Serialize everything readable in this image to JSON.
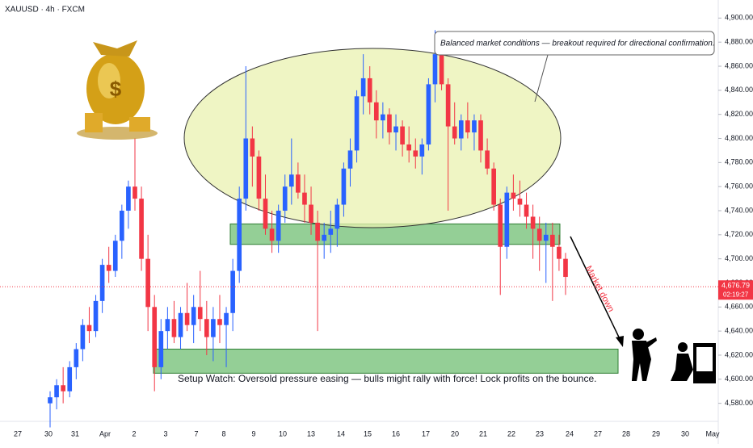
{
  "chart_data": {
    "type": "candlestick",
    "title": "XAUUSD · 4h · FXCM",
    "up_color": "#2962ff",
    "down_color": "#f23645",
    "open": [
      4580,
      4585,
      4595,
      4590,
      4610,
      4625,
      4645,
      4640,
      4665,
      4695,
      4690,
      4715,
      4740,
      4760,
      4750,
      4700,
      4660,
      4610,
      4640,
      4650,
      4635,
      4655,
      4645,
      4660,
      4650,
      4635,
      4650,
      4645,
      4655,
      4690,
      4750,
      4800,
      4785,
      4750,
      4725,
      4715,
      4740,
      4760,
      4770,
      4755,
      4745,
      4730,
      4715,
      4720,
      4725,
      4745,
      4775,
      4790,
      4835,
      4850,
      4830,
      4815,
      4820,
      4805,
      4810,
      4795,
      4790,
      4785,
      4795,
      4845,
      4870,
      4845,
      4810,
      4800,
      4815,
      4805,
      4815,
      4790,
      4775,
      4745,
      4710,
      4755,
      4750,
      4745,
      4735,
      4725,
      4715,
      4720,
      4710,
      4700
    ],
    "high": [
      4590,
      4600,
      4610,
      4615,
      4630,
      4650,
      4660,
      4670,
      4700,
      4710,
      4720,
      4745,
      4765,
      4800,
      4760,
      4720,
      4670,
      4650,
      4660,
      4665,
      4660,
      4680,
      4670,
      4690,
      4665,
      4660,
      4670,
      4660,
      4700,
      4760,
      4860,
      4810,
      4790,
      4770,
      4740,
      4745,
      4770,
      4800,
      4780,
      4770,
      4760,
      4740,
      4730,
      4740,
      4750,
      4780,
      4800,
      4840,
      4870,
      4860,
      4840,
      4830,
      4825,
      4820,
      4815,
      4810,
      4800,
      4800,
      4850,
      4890,
      4880,
      4850,
      4830,
      4820,
      4830,
      4820,
      4820,
      4800,
      4780,
      4750,
      4760,
      4770,
      4765,
      4755,
      4745,
      4735,
      4730,
      4730,
      4720,
      4705
    ],
    "low": [
      4560,
      4575,
      4580,
      4585,
      4600,
      4615,
      4630,
      4635,
      4655,
      4680,
      4685,
      4700,
      4725,
      4740,
      4690,
      4640,
      4590,
      4600,
      4625,
      4630,
      4625,
      4640,
      4630,
      4640,
      4620,
      4615,
      4630,
      4610,
      4640,
      4680,
      4740,
      4760,
      4740,
      4720,
      4705,
      4705,
      4730,
      4745,
      4750,
      4730,
      4720,
      4640,
      4700,
      4705,
      4710,
      4735,
      4760,
      4780,
      4820,
      4820,
      4800,
      4800,
      4795,
      4790,
      4785,
      4780,
      4775,
      4770,
      4790,
      4830,
      4840,
      4740,
      4795,
      4790,
      4800,
      4790,
      4780,
      4770,
      4740,
      4670,
      4700,
      4740,
      4735,
      4725,
      4700,
      4690,
      4680,
      4665,
      4690,
      4670
    ],
    "close": [
      4585,
      4595,
      4590,
      4610,
      4625,
      4645,
      4640,
      4665,
      4695,
      4690,
      4715,
      4740,
      4760,
      4750,
      4700,
      4660,
      4610,
      4640,
      4650,
      4635,
      4655,
      4645,
      4660,
      4650,
      4635,
      4650,
      4645,
      4655,
      4690,
      4750,
      4800,
      4785,
      4750,
      4725,
      4715,
      4740,
      4760,
      4770,
      4755,
      4745,
      4730,
      4715,
      4720,
      4725,
      4745,
      4775,
      4790,
      4835,
      4850,
      4830,
      4815,
      4820,
      4805,
      4810,
      4795,
      4790,
      4785,
      4795,
      4845,
      4870,
      4845,
      4810,
      4800,
      4815,
      4805,
      4815,
      4790,
      4775,
      4745,
      4710,
      4755,
      4750,
      4745,
      4735,
      4725,
      4715,
      4720,
      4710,
      4700,
      4685
    ],
    "ylim": [
      4565,
      4915
    ],
    "yticks": [
      {
        "value": 4580,
        "label": "4,580.00"
      },
      {
        "value": 4600,
        "label": "4,600.00"
      },
      {
        "value": 4620,
        "label": "4,620.00"
      },
      {
        "value": 4640,
        "label": "4,640.00"
      },
      {
        "value": 4660,
        "label": "4,660.00"
      },
      {
        "value": 4680,
        "label": "4,680.00"
      },
      {
        "value": 4700,
        "label": "4,700.00"
      },
      {
        "value": 4720,
        "label": "4,720.00"
      },
      {
        "value": 4740,
        "label": "4,740.00"
      },
      {
        "value": 4760,
        "label": "4,760.00"
      },
      {
        "value": 4780,
        "label": "4,780.00"
      },
      {
        "value": 4800,
        "label": "4,800.00"
      },
      {
        "value": 4820,
        "label": "4,820.00"
      },
      {
        "value": 4840,
        "label": "4,840.00"
      },
      {
        "value": 4860,
        "label": "4,860.00"
      },
      {
        "value": 4880,
        "label": "4,880.00"
      },
      {
        "value": 4900,
        "label": "4,900.00"
      }
    ],
    "xticks": [
      "27",
      "30",
      "31",
      "Apr",
      "2",
      "3",
      "7",
      "8",
      "9",
      "10",
      "13",
      "14",
      "15",
      "16",
      "17",
      "20",
      "21",
      "22",
      "23",
      "24",
      "27",
      "28",
      "29",
      "30",
      "May"
    ],
    "current_price": {
      "value": 4676.79,
      "label": "4,676.79"
    },
    "countdown": "02:19:27",
    "zones": [
      {
        "low": 4712,
        "high": 4729,
        "color": "#4caf50"
      },
      {
        "low": 4605,
        "high": 4625,
        "color": "#4caf50"
      }
    ],
    "annotation_top": "Balanced market conditions — breakout required for directional confirmation.",
    "annotation_bottom": "Setup Watch: Oversold pressure easing — bulls might rally with force! Lock profits on the bounce.",
    "annotation_arrow": "Market down"
  }
}
